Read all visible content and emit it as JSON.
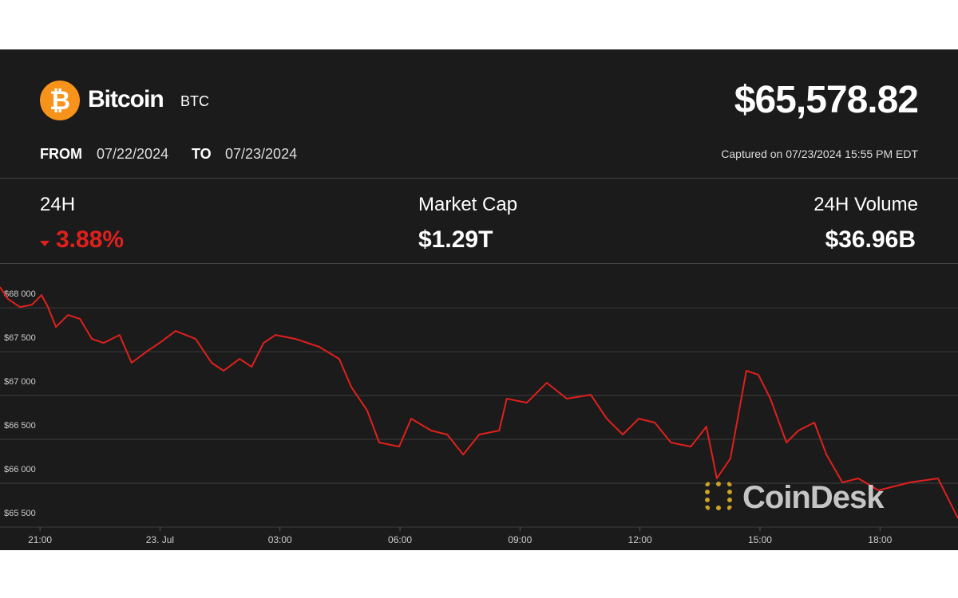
{
  "asset": {
    "name": "Bitcoin",
    "ticker": "BTC"
  },
  "price": "$65,578.82",
  "range": {
    "from_label": "FROM",
    "from": "07/22/2024",
    "to_label": "TO",
    "to": "07/23/2024"
  },
  "captured": "Captured on 07/23/2024 15:55 PM EDT",
  "stats": [
    {
      "label": "24H",
      "value": "3.88%"
    },
    {
      "label": "Market Cap",
      "value": "$1.29T"
    },
    {
      "label": "24H Volume",
      "value": "$36.96B"
    }
  ],
  "watermark": "CoinDesk",
  "chart_data": {
    "type": "line",
    "color": "#e0201c",
    "grid": true,
    "x": [
      20.0,
      20.2,
      20.5,
      20.8,
      21.04,
      21.2,
      21.4,
      21.7,
      22.0,
      22.3,
      22.59,
      22.99,
      23.29,
      23.69,
      23.99,
      24.39,
      24.89,
      25.29,
      25.59,
      25.99,
      26.29,
      26.59,
      26.89,
      27.39,
      27.98,
      28.48,
      28.78,
      29.18,
      29.48,
      29.98,
      30.28,
      30.78,
      31.18,
      31.58,
      31.98,
      32.48,
      32.67,
      33.17,
      33.67,
      34.17,
      34.77,
      35.17,
      35.57,
      35.97,
      36.37,
      36.77,
      37.27,
      37.66,
      37.92,
      38.26,
      38.66,
      38.96,
      39.26,
      39.66,
      39.96,
      40.36,
      40.66,
      41.06,
      41.46,
      41.96,
      42.75,
      43.45,
      43.95
    ],
    "values": [
      68236,
      68100,
      68009,
      68036,
      68145,
      68009,
      67782,
      67918,
      67873,
      67645,
      67600,
      67691,
      67373,
      67509,
      67600,
      67736,
      67645,
      67373,
      67282,
      67418,
      67327,
      67600,
      67691,
      67645,
      67555,
      67418,
      67100,
      66827,
      66464,
      66418,
      66736,
      66600,
      66555,
      66327,
      66555,
      66600,
      66964,
      66918,
      67145,
      66964,
      67009,
      66736,
      66555,
      66736,
      66691,
      66464,
      66418,
      66645,
      66055,
      66282,
      67282,
      67236,
      66964,
      66464,
      66600,
      66691,
      66327,
      66009,
      66055,
      65918,
      66009,
      66055,
      65600
    ],
    "xlim": [
      20,
      43.95
    ],
    "ylim": [
      65500,
      68510
    ],
    "xticks": [
      {
        "value": 21,
        "label": "21:00"
      },
      {
        "value": 24,
        "label": "23. Jul"
      },
      {
        "value": 27,
        "label": "03:00"
      },
      {
        "value": 30,
        "label": "06:00"
      },
      {
        "value": 33,
        "label": "09:00"
      },
      {
        "value": 36,
        "label": "12:00"
      },
      {
        "value": 39,
        "label": "15:00"
      },
      {
        "value": 42,
        "label": "18:00"
      }
    ],
    "yticks": [
      {
        "value": 65500,
        "label": "$65 500"
      },
      {
        "value": 66000,
        "label": "$66 000"
      },
      {
        "value": 66500,
        "label": "$66 500"
      },
      {
        "value": 67000,
        "label": "$67 000"
      },
      {
        "value": 67500,
        "label": "$67 500"
      },
      {
        "value": 68000,
        "label": "$68 000"
      }
    ]
  }
}
